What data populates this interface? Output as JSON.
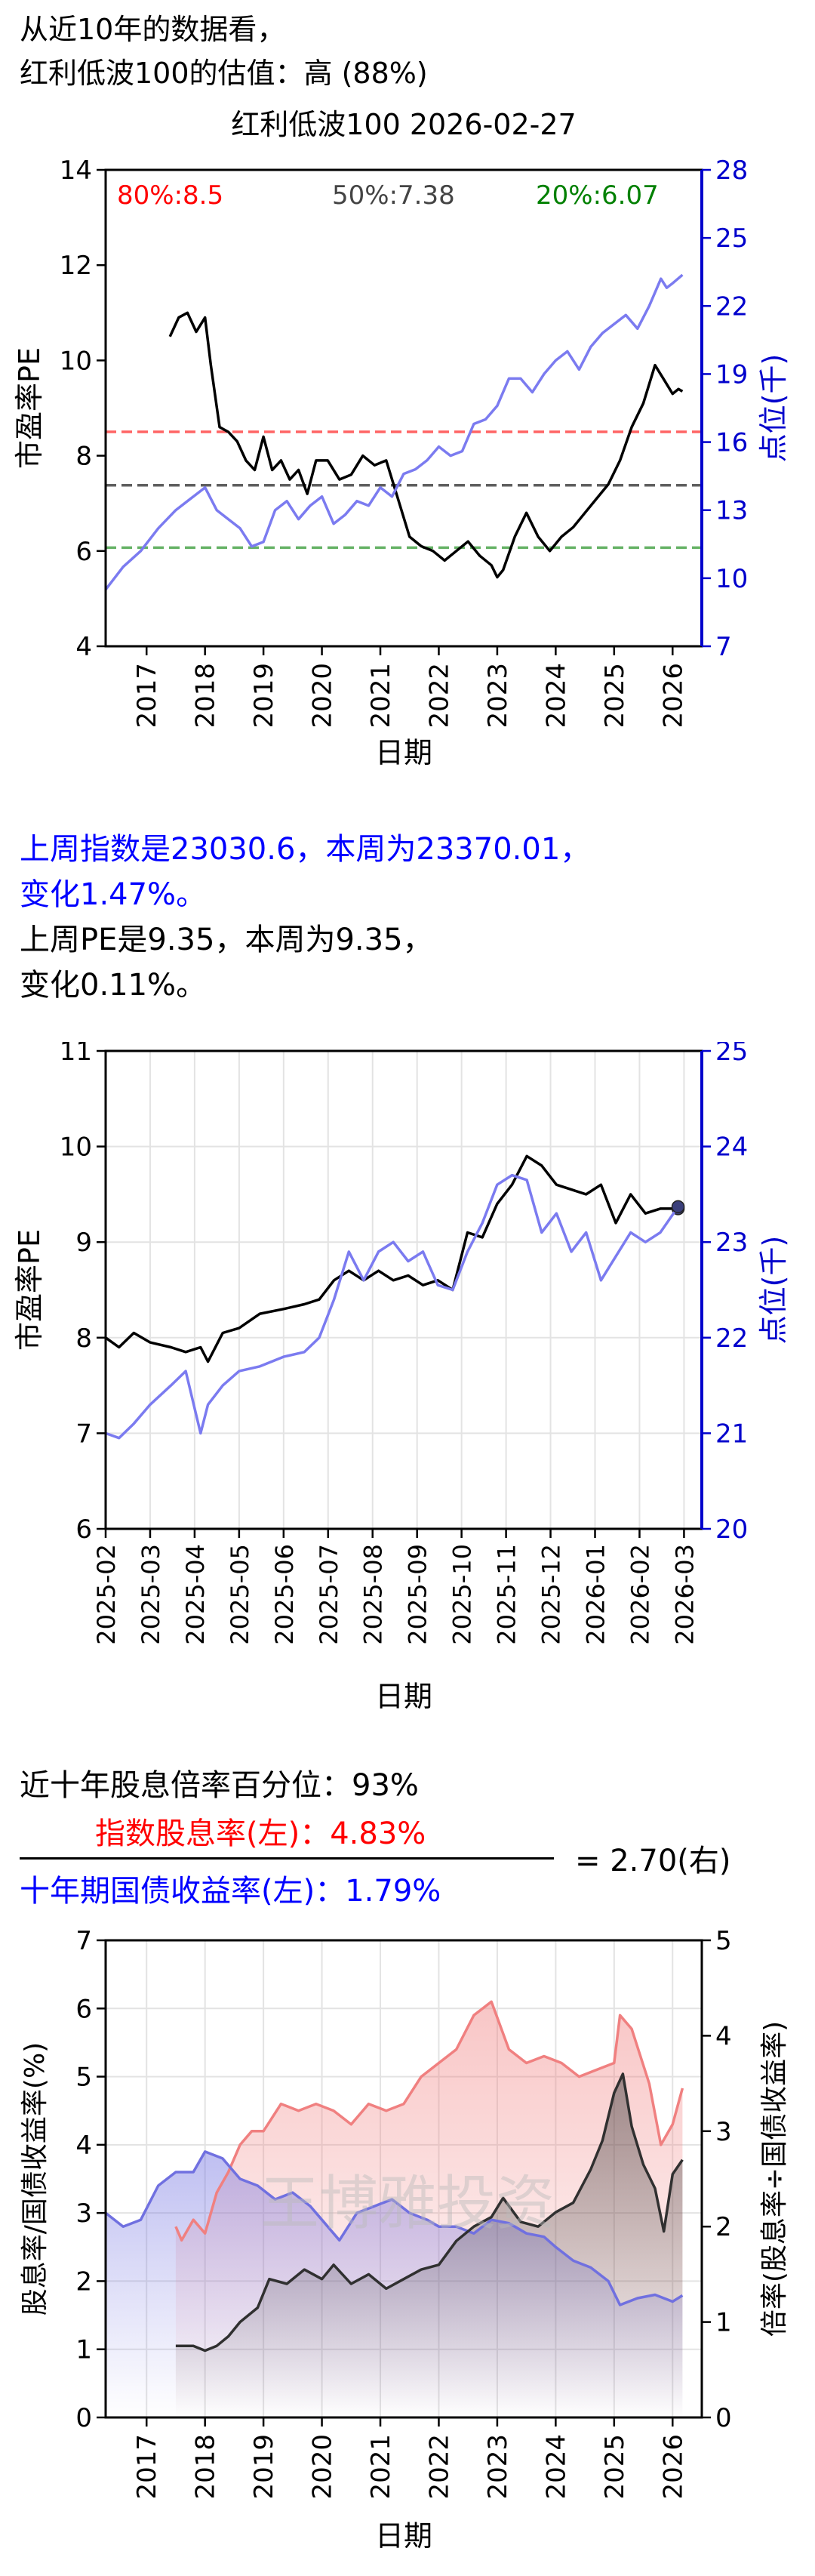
{
  "colors": {
    "pe": "#000000",
    "index": "#7b7bf0",
    "index_axis": "#0000cc",
    "p80": "#ff0000",
    "p50": "#444444",
    "p20": "#008000",
    "dividend": "#f08080",
    "bond": "#7070e0",
    "ratio": "#303030",
    "dot": "#3a3f7a"
  },
  "header": {
    "line1": "从近10年的数据看，",
    "line2": "红利低波100的估值：高 (88%)"
  },
  "weekly": {
    "line1": "上周指数是23030.6，本周为23370.01，",
    "line2": "变化1.47%。",
    "line3": "上周PE是9.35，本周为9.35，",
    "line4": "变化0.11%。"
  },
  "ratio_header": {
    "percentile": "近十年股息倍率百分位：93%",
    "numerator": "指数股息率(左)：4.83%",
    "denominator": "十年期国债收益率(左)：1.79%",
    "result": "= 2.70(右)"
  },
  "chart_data": [
    {
      "type": "line",
      "title": "红利低波100 2026-02-27",
      "xlabel": "日期",
      "ylabel_left": "市盈率PE",
      "ylabel_right": "点位(千)",
      "xlim": [
        2016.3,
        2026.5
      ],
      "ylim_left": [
        4,
        14
      ],
      "ylim_right": [
        7,
        28
      ],
      "x_ticks": [
        "2017",
        "2018",
        "2019",
        "2020",
        "2021",
        "2022",
        "2023",
        "2024",
        "2025",
        "2026"
      ],
      "y_ticks_left": [
        "4",
        "6",
        "8",
        "10",
        "12",
        "14"
      ],
      "y_ticks_right": [
        "7",
        "10",
        "13",
        "16",
        "19",
        "22",
        "25",
        "28"
      ],
      "grid": false,
      "reference_lines": [
        {
          "label": "80%:8.5",
          "value": 8.5,
          "color": "#ff0000"
        },
        {
          "label": "50%:7.38",
          "value": 7.38,
          "color": "#444444"
        },
        {
          "label": "20%:6.07",
          "value": 6.07,
          "color": "#008000"
        }
      ],
      "series": [
        {
          "axis": "left",
          "x": [
            2017.4,
            2017.55,
            2017.7,
            2017.85,
            2018.0,
            2018.1,
            2018.25,
            2018.4,
            2018.55,
            2018.7,
            2018.85,
            2019.0,
            2019.15,
            2019.3,
            2019.45,
            2019.6,
            2019.75,
            2019.9,
            2020.1,
            2020.3,
            2020.5,
            2020.7,
            2020.9,
            2021.1,
            2021.3,
            2021.5,
            2021.7,
            2021.9,
            2022.1,
            2022.3,
            2022.5,
            2022.7,
            2022.9,
            2023.0,
            2023.1,
            2023.3,
            2023.5,
            2023.7,
            2023.9,
            2024.1,
            2024.3,
            2024.5,
            2024.7,
            2024.9,
            2025.1,
            2025.3,
            2025.5,
            2025.7,
            2025.85,
            2026.0,
            2026.1,
            2026.17
          ],
          "y": [
            10.5,
            10.9,
            11.0,
            10.6,
            10.9,
            9.9,
            8.6,
            8.5,
            8.3,
            7.9,
            7.7,
            8.4,
            7.7,
            7.9,
            7.5,
            7.7,
            7.2,
            7.9,
            7.9,
            7.5,
            7.6,
            8.0,
            7.8,
            7.9,
            7.1,
            6.3,
            6.1,
            6.0,
            5.8,
            6.0,
            6.2,
            5.9,
            5.7,
            5.45,
            5.6,
            6.3,
            6.8,
            6.3,
            6.0,
            6.3,
            6.5,
            6.8,
            7.1,
            7.4,
            7.9,
            8.6,
            9.1,
            9.9,
            9.6,
            9.3,
            9.4,
            9.35
          ]
        },
        {
          "axis": "right",
          "x": [
            2016.3,
            2016.6,
            2016.9,
            2017.2,
            2017.5,
            2017.8,
            2018.0,
            2018.2,
            2018.4,
            2018.6,
            2018.8,
            2019.0,
            2019.2,
            2019.4,
            2019.6,
            2019.8,
            2020.0,
            2020.2,
            2020.4,
            2020.6,
            2020.8,
            2021.0,
            2021.2,
            2021.4,
            2021.6,
            2021.8,
            2022.0,
            2022.2,
            2022.4,
            2022.6,
            2022.8,
            2023.0,
            2023.2,
            2023.4,
            2023.6,
            2023.8,
            2024.0,
            2024.2,
            2024.4,
            2024.6,
            2024.8,
            2025.0,
            2025.2,
            2025.4,
            2025.6,
            2025.8,
            2025.9,
            2026.0,
            2026.17
          ],
          "y": [
            9.5,
            10.5,
            11.2,
            12.2,
            13.0,
            13.6,
            14.0,
            13.0,
            12.6,
            12.2,
            11.4,
            11.6,
            13.0,
            13.4,
            12.6,
            13.2,
            13.6,
            12.4,
            12.8,
            13.4,
            13.2,
            14.0,
            13.6,
            14.6,
            14.8,
            15.2,
            15.8,
            15.4,
            15.6,
            16.8,
            17.0,
            17.6,
            18.8,
            18.8,
            18.2,
            19.0,
            19.6,
            20.0,
            19.2,
            20.2,
            20.8,
            21.2,
            21.6,
            21.0,
            22.0,
            23.2,
            22.8,
            23.0,
            23.37
          ]
        }
      ]
    },
    {
      "type": "line",
      "xlabel": "日期",
      "ylabel_left": "市盈率PE",
      "ylabel_right": "点位(千)",
      "ylim_left": [
        6,
        11
      ],
      "ylim_right": [
        20,
        25
      ],
      "x_ticks": [
        "2025-02",
        "2025-03",
        "2025-04",
        "2025-05",
        "2025-06",
        "2025-07",
        "2025-08",
        "2025-09",
        "2025-10",
        "2025-11",
        "2025-12",
        "2026-01",
        "2026-02",
        "2026-03"
      ],
      "y_ticks_left": [
        "6",
        "7",
        "8",
        "9",
        "10",
        "11"
      ],
      "y_ticks_right": [
        "20",
        "21",
        "22",
        "23",
        "24",
        "25"
      ],
      "grid": true,
      "series": [
        {
          "axis": "left",
          "x": [
            "2025-02-01",
            "2025-02-10",
            "2025-02-20",
            "2025-03-01",
            "2025-03-15",
            "2025-03-25",
            "2025-04-05",
            "2025-04-10",
            "2025-04-20",
            "2025-05-01",
            "2025-05-15",
            "2025-06-01",
            "2025-06-15",
            "2025-06-25",
            "2025-07-05",
            "2025-07-15",
            "2025-07-25",
            "2025-08-05",
            "2025-08-15",
            "2025-08-25",
            "2025-09-05",
            "2025-09-15",
            "2025-09-25",
            "2025-10-05",
            "2025-10-15",
            "2025-10-25",
            "2025-11-05",
            "2025-11-15",
            "2025-11-25",
            "2025-12-05",
            "2025-12-15",
            "2025-12-25",
            "2026-01-05",
            "2026-01-15",
            "2026-01-25",
            "2026-02-05",
            "2026-02-15",
            "2026-02-27"
          ],
          "y": [
            8.0,
            7.9,
            8.05,
            7.95,
            7.9,
            7.85,
            7.9,
            7.75,
            8.05,
            8.1,
            8.25,
            8.3,
            8.35,
            8.4,
            8.6,
            8.7,
            8.6,
            8.7,
            8.6,
            8.65,
            8.55,
            8.6,
            8.5,
            9.1,
            9.05,
            9.4,
            9.6,
            9.9,
            9.8,
            9.6,
            9.55,
            9.5,
            9.6,
            9.2,
            9.5,
            9.3,
            9.35,
            9.35
          ]
        },
        {
          "axis": "right",
          "x": [
            "2025-02-01",
            "2025-02-10",
            "2025-02-20",
            "2025-03-01",
            "2025-03-15",
            "2025-03-25",
            "2025-04-05",
            "2025-04-10",
            "2025-04-20",
            "2025-05-01",
            "2025-05-15",
            "2025-06-01",
            "2025-06-15",
            "2025-06-25",
            "2025-07-05",
            "2025-07-15",
            "2025-07-25",
            "2025-08-05",
            "2025-08-15",
            "2025-08-25",
            "2025-09-05",
            "2025-09-15",
            "2025-09-25",
            "2025-10-05",
            "2025-10-15",
            "2025-10-25",
            "2025-11-05",
            "2025-11-15",
            "2025-11-25",
            "2025-12-05",
            "2025-12-15",
            "2025-12-25",
            "2026-01-05",
            "2026-01-15",
            "2026-01-25",
            "2026-02-05",
            "2026-02-15",
            "2026-02-27"
          ],
          "y": [
            21.0,
            20.95,
            21.1,
            21.3,
            21.5,
            21.65,
            21.0,
            21.3,
            21.5,
            21.65,
            21.7,
            21.8,
            21.85,
            22.0,
            22.4,
            22.9,
            22.6,
            22.9,
            23.0,
            22.8,
            22.9,
            22.55,
            22.5,
            22.9,
            23.2,
            23.6,
            23.7,
            23.65,
            23.1,
            23.3,
            22.9,
            23.1,
            22.6,
            22.85,
            23.1,
            23.0,
            23.1,
            23.37
          ]
        }
      ]
    },
    {
      "type": "area",
      "xlabel": "日期",
      "ylabel_left": "股息率/国债收益率(%)",
      "ylabel_right": "倍率(股息率÷国债收益率)",
      "xlim": [
        2016.3,
        2026.5
      ],
      "ylim_left": [
        0,
        7
      ],
      "ylim_right": [
        0,
        5
      ],
      "x_ticks": [
        "2017",
        "2018",
        "2019",
        "2020",
        "2021",
        "2022",
        "2023",
        "2024",
        "2025",
        "2026"
      ],
      "y_ticks_left": [
        "0",
        "1",
        "2",
        "3",
        "4",
        "5",
        "6",
        "7"
      ],
      "y_ticks_right": [
        "0",
        "1",
        "2",
        "3",
        "4",
        "5"
      ],
      "grid": true,
      "watermark": "王博雅投资",
      "series": [
        {
          "axis": "left",
          "x": [
            2017.5,
            2017.6,
            2017.8,
            2018.0,
            2018.2,
            2018.4,
            2018.6,
            2018.8,
            2019.0,
            2019.3,
            2019.6,
            2019.9,
            2020.2,
            2020.5,
            2020.8,
            2021.1,
            2021.4,
            2021.7,
            2022.0,
            2022.3,
            2022.6,
            2022.9,
            2023.2,
            2023.5,
            2023.8,
            2024.1,
            2024.4,
            2024.7,
            2025.0,
            2025.1,
            2025.3,
            2025.6,
            2025.8,
            2026.0,
            2026.17
          ],
          "y": [
            2.8,
            2.6,
            2.9,
            2.7,
            3.3,
            3.6,
            4.0,
            4.2,
            4.2,
            4.6,
            4.5,
            4.6,
            4.5,
            4.3,
            4.6,
            4.5,
            4.6,
            5.0,
            5.2,
            5.4,
            5.9,
            6.1,
            5.4,
            5.2,
            5.3,
            5.2,
            5.0,
            5.1,
            5.2,
            5.9,
            5.7,
            4.9,
            4.0,
            4.3,
            4.83
          ]
        },
        {
          "axis": "left",
          "x": [
            2016.3,
            2016.6,
            2016.9,
            2017.2,
            2017.5,
            2017.8,
            2018.0,
            2018.3,
            2018.6,
            2018.9,
            2019.2,
            2019.5,
            2019.8,
            2020.0,
            2020.3,
            2020.6,
            2020.9,
            2021.2,
            2021.5,
            2021.8,
            2022.0,
            2022.3,
            2022.6,
            2022.9,
            2023.2,
            2023.5,
            2023.8,
            2024.0,
            2024.3,
            2024.6,
            2024.9,
            2025.1,
            2025.4,
            2025.7,
            2026.0,
            2026.17
          ],
          "y": [
            3.0,
            2.8,
            2.9,
            3.4,
            3.6,
            3.6,
            3.9,
            3.8,
            3.5,
            3.4,
            3.2,
            3.3,
            3.1,
            2.9,
            2.6,
            3.0,
            3.1,
            3.2,
            3.0,
            2.9,
            2.8,
            2.8,
            2.7,
            2.9,
            2.85,
            2.7,
            2.65,
            2.5,
            2.3,
            2.2,
            2.0,
            1.65,
            1.75,
            1.8,
            1.7,
            1.79
          ]
        },
        {
          "axis": "right",
          "x": [
            2017.5,
            2017.8,
            2018.0,
            2018.2,
            2018.4,
            2018.6,
            2018.9,
            2019.1,
            2019.4,
            2019.7,
            2020.0,
            2020.2,
            2020.5,
            2020.8,
            2021.1,
            2021.4,
            2021.7,
            2022.0,
            2022.3,
            2022.6,
            2022.9,
            2023.1,
            2023.4,
            2023.7,
            2024.0,
            2024.3,
            2024.6,
            2024.8,
            2025.0,
            2025.15,
            2025.3,
            2025.5,
            2025.7,
            2025.85,
            2026.0,
            2026.17
          ],
          "y": [
            0.75,
            0.75,
            0.7,
            0.75,
            0.85,
            1.0,
            1.15,
            1.45,
            1.4,
            1.55,
            1.45,
            1.6,
            1.4,
            1.5,
            1.35,
            1.45,
            1.55,
            1.6,
            1.85,
            2.0,
            2.1,
            2.3,
            2.05,
            2.0,
            2.15,
            2.25,
            2.6,
            2.9,
            3.4,
            3.6,
            3.05,
            2.65,
            2.4,
            1.95,
            2.55,
            2.7
          ]
        }
      ]
    }
  ]
}
